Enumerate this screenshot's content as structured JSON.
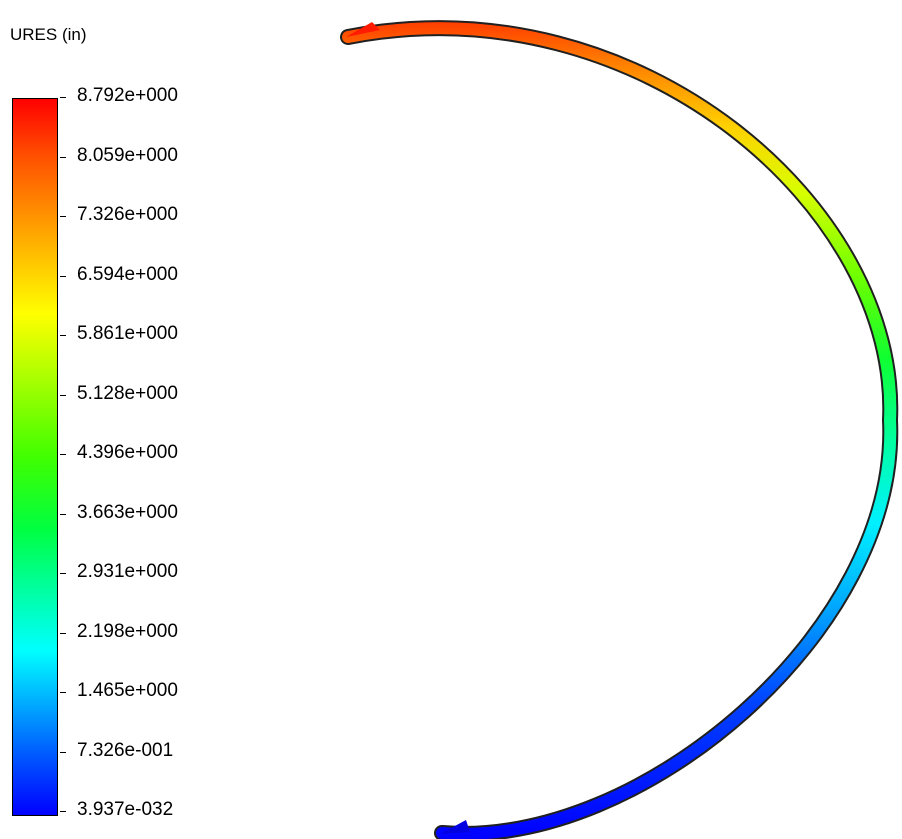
{
  "legend": {
    "title": "URES (in)",
    "labels": [
      "8.792e+000",
      "8.059e+000",
      "7.326e+000",
      "6.594e+000",
      "5.861e+000",
      "5.128e+000",
      "4.396e+000",
      "3.663e+000",
      "2.931e+000",
      "2.198e+000",
      "1.465e+000",
      "7.326e-001",
      "3.937e-032"
    ]
  },
  "colors": {
    "max": "#ff0000",
    "mid_high": "#ffff00",
    "mid": "#00ff00",
    "mid_low": "#00ffff",
    "min": "#0000ff"
  }
}
